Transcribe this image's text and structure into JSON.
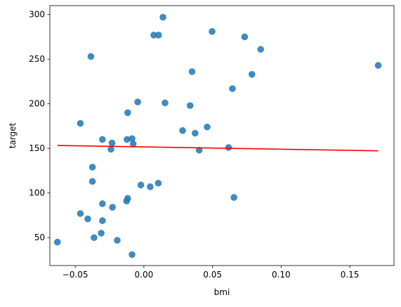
{
  "chart_data": {
    "type": "scatter",
    "title": "",
    "xlabel": "bmi",
    "ylabel": "target",
    "xlim": [
      -0.0685,
      0.1822
    ],
    "ylim": [
      18.7,
      310.0
    ],
    "xticks": [
      {
        "value": -0.05,
        "label": "−0.05"
      },
      {
        "value": 0.0,
        "label": "0.00"
      },
      {
        "value": 0.05,
        "label": "0.05"
      },
      {
        "value": 0.1,
        "label": "0.10"
      },
      {
        "value": 0.15,
        "label": "0.15"
      }
    ],
    "yticks": [
      {
        "value": 50,
        "label": "50"
      },
      {
        "value": 100,
        "label": "100"
      },
      {
        "value": 150,
        "label": "150"
      },
      {
        "value": 200,
        "label": "200"
      },
      {
        "value": 250,
        "label": "250"
      },
      {
        "value": 300,
        "label": "300"
      }
    ],
    "grid": false,
    "colors": {
      "points": "#1f77b4",
      "line": "#ff0000",
      "axes": "#000000"
    },
    "points": [
      {
        "x": 0.0139,
        "y": 297
      },
      {
        "x": 0.0072,
        "y": 277
      },
      {
        "x": 0.0107,
        "y": 277
      },
      {
        "x": 0.0497,
        "y": 281
      },
      {
        "x": 0.0734,
        "y": 275
      },
      {
        "x": 0.0851,
        "y": 261
      },
      {
        "x": -0.0386,
        "y": 253
      },
      {
        "x": 0.1707,
        "y": 243
      },
      {
        "x": 0.0351,
        "y": 236
      },
      {
        "x": 0.0787,
        "y": 233
      },
      {
        "x": 0.0645,
        "y": 217
      },
      {
        "x": -0.0045,
        "y": 202
      },
      {
        "x": 0.0154,
        "y": 201
      },
      {
        "x": 0.0337,
        "y": 198
      },
      {
        "x": -0.0118,
        "y": 190
      },
      {
        "x": -0.0463,
        "y": 178
      },
      {
        "x": 0.0461,
        "y": 174
      },
      {
        "x": 0.0282,
        "y": 170
      },
      {
        "x": 0.0373,
        "y": 167
      },
      {
        "x": -0.0302,
        "y": 160
      },
      {
        "x": -0.0123,
        "y": 160
      },
      {
        "x": -0.0086,
        "y": 161
      },
      {
        "x": -0.0232,
        "y": 156
      },
      {
        "x": -0.0078,
        "y": 155
      },
      {
        "x": 0.0617,
        "y": 151
      },
      {
        "x": -0.024,
        "y": 149
      },
      {
        "x": 0.0403,
        "y": 148
      },
      {
        "x": -0.0375,
        "y": 129
      },
      {
        "x": -0.0375,
        "y": 113
      },
      {
        "x": -0.0022,
        "y": 109
      },
      {
        "x": 0.0046,
        "y": 107
      },
      {
        "x": 0.0105,
        "y": 111
      },
      {
        "x": 0.0656,
        "y": 95
      },
      {
        "x": -0.0118,
        "y": 94
      },
      {
        "x": -0.0126,
        "y": 91
      },
      {
        "x": -0.0302,
        "y": 88
      },
      {
        "x": -0.0229,
        "y": 84
      },
      {
        "x": -0.0463,
        "y": 77
      },
      {
        "x": -0.0409,
        "y": 71
      },
      {
        "x": -0.0302,
        "y": 69
      },
      {
        "x": -0.0311,
        "y": 55
      },
      {
        "x": -0.0363,
        "y": 50
      },
      {
        "x": -0.0194,
        "y": 47
      },
      {
        "x": -0.063,
        "y": 45
      },
      {
        "x": -0.0086,
        "y": 31
      }
    ],
    "regression_line": {
      "x": [
        -0.063,
        0.1707
      ],
      "y": [
        153.3,
        147.3
      ]
    }
  }
}
